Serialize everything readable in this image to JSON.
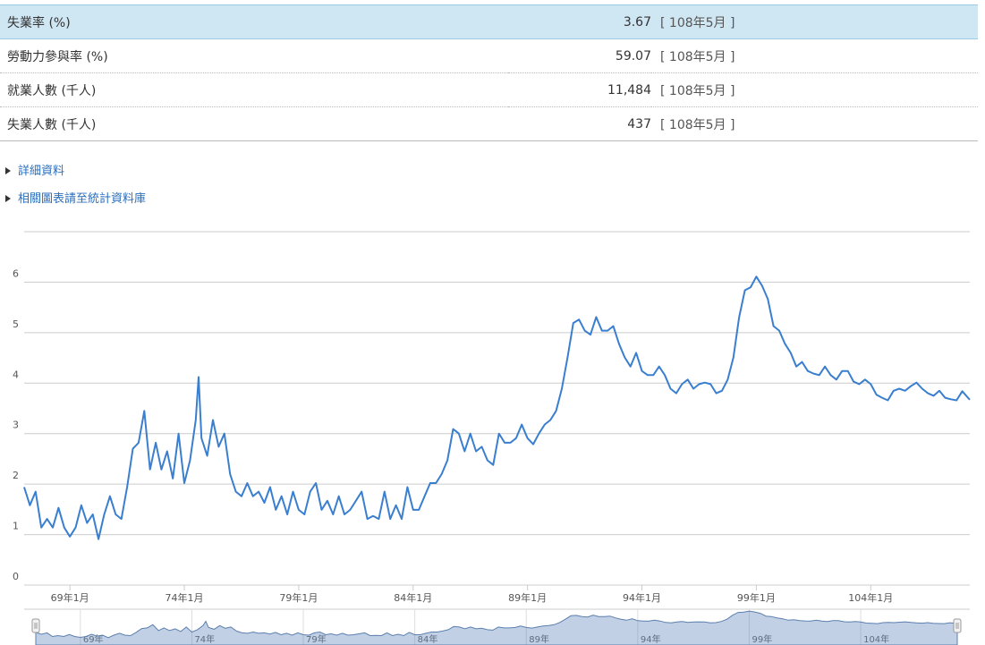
{
  "table": {
    "rows": [
      [
        "失業率 (%)",
        "3.67",
        "[ 108年5月 ]"
      ],
      [
        "勞動力參與率 (%)",
        "59.07",
        "[ 108年5月 ]"
      ],
      [
        "就業人數 (千人)",
        "11,484",
        "[ 108年5月 ]"
      ],
      [
        "失業人數 (千人)",
        "437",
        "[ 108年5月 ]"
      ]
    ]
  },
  "links": [
    "詳細資料",
    "相關圖表請至統計資料庫"
  ],
  "chart_data": {
    "type": "line",
    "x": [
      67,
      67.25,
      67.5,
      67.75,
      68,
      68.25,
      68.5,
      68.75,
      69,
      69.25,
      69.5,
      69.75,
      70,
      70.25,
      70.5,
      70.75,
      71,
      71.25,
      71.5,
      71.75,
      72,
      72.25,
      72.5,
      72.75,
      73,
      73.25,
      73.5,
      73.75,
      74,
      74.25,
      74.5,
      74.625,
      74.75,
      75,
      75.25,
      75.5,
      75.75,
      76,
      76.25,
      76.5,
      76.75,
      77,
      77.25,
      77.5,
      77.75,
      78,
      78.25,
      78.5,
      78.75,
      79,
      79.25,
      79.5,
      79.75,
      80,
      80.25,
      80.5,
      80.75,
      81,
      81.25,
      81.5,
      81.75,
      82,
      82.25,
      82.5,
      82.75,
      83,
      83.25,
      83.5,
      83.75,
      84,
      84.25,
      84.5,
      84.75,
      85,
      85.25,
      85.5,
      85.75,
      86,
      86.25,
      86.5,
      86.75,
      87,
      87.25,
      87.5,
      87.75,
      88,
      88.25,
      88.5,
      88.75,
      89,
      89.25,
      89.5,
      89.75,
      90,
      90.25,
      90.5,
      90.75,
      91,
      91.25,
      91.5,
      91.75,
      92,
      92.25,
      92.5,
      92.75,
      93,
      93.25,
      93.5,
      93.75,
      94,
      94.25,
      94.5,
      94.75,
      95,
      95.25,
      95.5,
      95.75,
      96,
      96.25,
      96.5,
      96.75,
      97,
      97.25,
      97.5,
      97.75,
      98,
      98.25,
      98.5,
      98.75,
      99,
      99.25,
      99.5,
      99.75,
      100,
      100.25,
      100.5,
      100.75,
      101,
      101.25,
      101.5,
      101.75,
      102,
      102.25,
      102.5,
      102.75,
      103,
      103.25,
      103.5,
      103.75,
      104,
      104.25,
      104.5,
      104.75,
      105,
      105.25,
      105.5,
      105.75,
      106,
      106.25,
      106.5,
      106.75,
      107,
      107.25,
      107.5,
      107.75,
      108,
      108.25,
      108.33
    ],
    "series": [
      {
        "color": "#3a7fcf",
        "values": [
          1.94,
          1.58,
          1.85,
          1.14,
          1.31,
          1.14,
          1.53,
          1.14,
          0.96,
          1.14,
          1.58,
          1.23,
          1.4,
          0.91,
          1.4,
          1.76,
          1.4,
          1.31,
          1.94,
          2.7,
          2.82,
          3.45,
          2.29,
          2.82,
          2.29,
          2.65,
          2.11,
          3.0,
          2.02,
          2.47,
          3.27,
          4.12,
          2.91,
          2.56,
          3.27,
          2.74,
          3.0,
          2.2,
          1.85,
          1.76,
          2.02,
          1.76,
          1.85,
          1.63,
          1.94,
          1.49,
          1.76,
          1.4,
          1.85,
          1.49,
          1.4,
          1.85,
          2.02,
          1.49,
          1.67,
          1.4,
          1.76,
          1.4,
          1.49,
          1.67,
          1.85,
          1.31,
          1.37,
          1.31,
          1.85,
          1.31,
          1.58,
          1.31,
          1.94,
          1.49,
          1.49,
          1.76,
          2.02,
          2.02,
          2.2,
          2.47,
          3.09,
          3.0,
          2.65,
          3.0,
          2.65,
          2.74,
          2.47,
          2.38,
          3.0,
          2.82,
          2.82,
          2.91,
          3.18,
          2.91,
          2.79,
          3.0,
          3.18,
          3.27,
          3.45,
          3.89,
          4.51,
          5.19,
          5.26,
          5.04,
          4.96,
          5.31,
          5.04,
          5.04,
          5.13,
          4.78,
          4.51,
          4.33,
          4.6,
          4.24,
          4.16,
          4.16,
          4.33,
          4.16,
          3.89,
          3.8,
          3.98,
          4.07,
          3.89,
          3.98,
          4.01,
          3.98,
          3.8,
          3.85,
          4.07,
          4.51,
          5.31,
          5.84,
          5.9,
          6.11,
          5.93,
          5.67,
          5.13,
          5.04,
          4.78,
          4.6,
          4.33,
          4.42,
          4.24,
          4.19,
          4.16,
          4.33,
          4.16,
          4.07,
          4.24,
          4.24,
          4.03,
          3.98,
          4.07,
          3.98,
          3.77,
          3.71,
          3.66,
          3.85,
          3.89,
          3.85,
          3.94,
          4.01,
          3.89,
          3.8,
          3.75,
          3.85,
          3.71,
          3.68,
          3.66,
          3.84,
          3.71,
          3.67
        ]
      }
    ],
    "xlim": [
      67,
      108.33
    ],
    "xticks": [
      {
        "value": 69,
        "label": "69年1月"
      },
      {
        "value": 74,
        "label": "74年1月"
      },
      {
        "value": 79,
        "label": "79年1月"
      },
      {
        "value": 84,
        "label": "84年1月"
      },
      {
        "value": 89,
        "label": "89年1月"
      },
      {
        "value": 94,
        "label": "94年1月"
      },
      {
        "value": 99,
        "label": "99年1月"
      },
      {
        "value": 104,
        "label": "104年1月"
      }
    ],
    "ylim": [
      0,
      7
    ],
    "yticks": [
      0,
      1,
      2,
      3,
      4,
      5,
      6
    ],
    "grid": true,
    "navigator_xticks": [
      {
        "value": 69,
        "label": "69年"
      },
      {
        "value": 74,
        "label": "74年"
      },
      {
        "value": 79,
        "label": "79年"
      },
      {
        "value": 84,
        "label": "84年"
      },
      {
        "value": 89,
        "label": "89年"
      },
      {
        "value": 94,
        "label": "94年"
      },
      {
        "value": 99,
        "label": "99年"
      },
      {
        "value": 104,
        "label": "104年"
      }
    ]
  }
}
